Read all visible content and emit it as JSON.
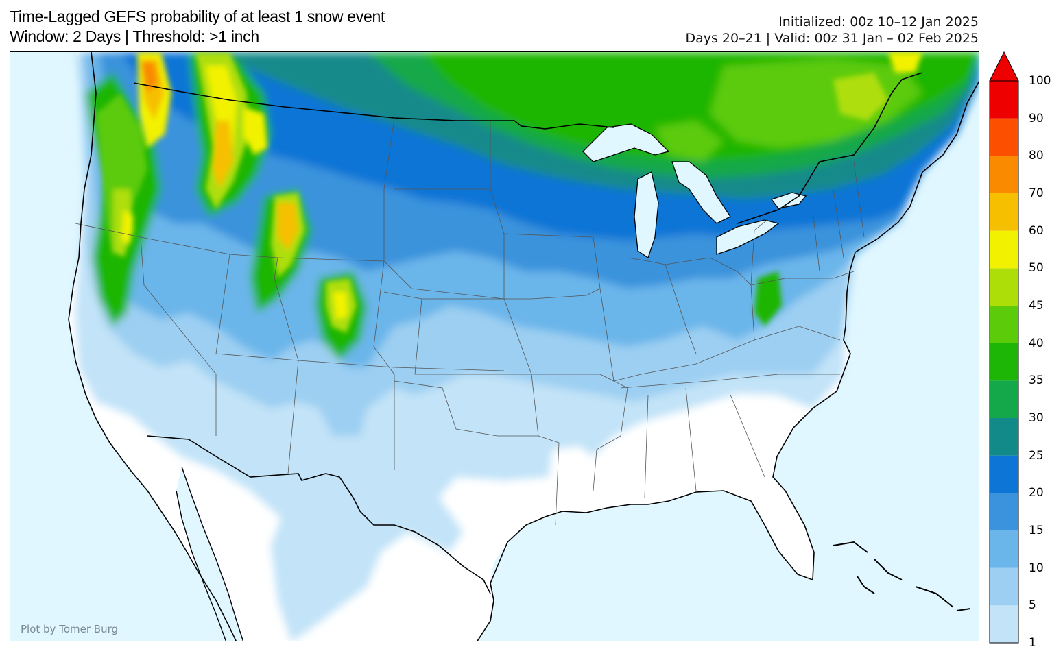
{
  "header": {
    "title_line1": "Time-Lagged GEFS probability of at least 1 snow event",
    "title_line2": "Window: 2 Days | Threshold: >1 inch",
    "initialized": "Initialized: 00z 10–12 Jan 2025",
    "valid": "Days 20–21 | Valid: 00z 31 Jan – 02 Feb 2025"
  },
  "map": {
    "credit": "Plot by Tomer Burg",
    "water_color": "#e0f7ff",
    "land_color": "#ffffff"
  },
  "colorbar": {
    "levels": [
      1,
      5,
      10,
      15,
      20,
      25,
      30,
      35,
      40,
      45,
      50,
      60,
      70,
      80,
      90,
      100
    ],
    "labels": [
      "1",
      "5",
      "10",
      "15",
      "20",
      "25",
      "30",
      "35",
      "40",
      "45",
      "50",
      "60",
      "70",
      "80",
      "90",
      "100"
    ],
    "colors": [
      "#c2e3f8",
      "#9ccff2",
      "#6ab5ea",
      "#3a93dc",
      "#0c75d6",
      "#128a8a",
      "#14a84a",
      "#1db506",
      "#5ccb0a",
      "#aede08",
      "#f2f200",
      "#f6c000",
      "#fa8a00",
      "#fc4f00",
      "#ee0000"
    ],
    "extend_color": "#ee0000"
  }
}
